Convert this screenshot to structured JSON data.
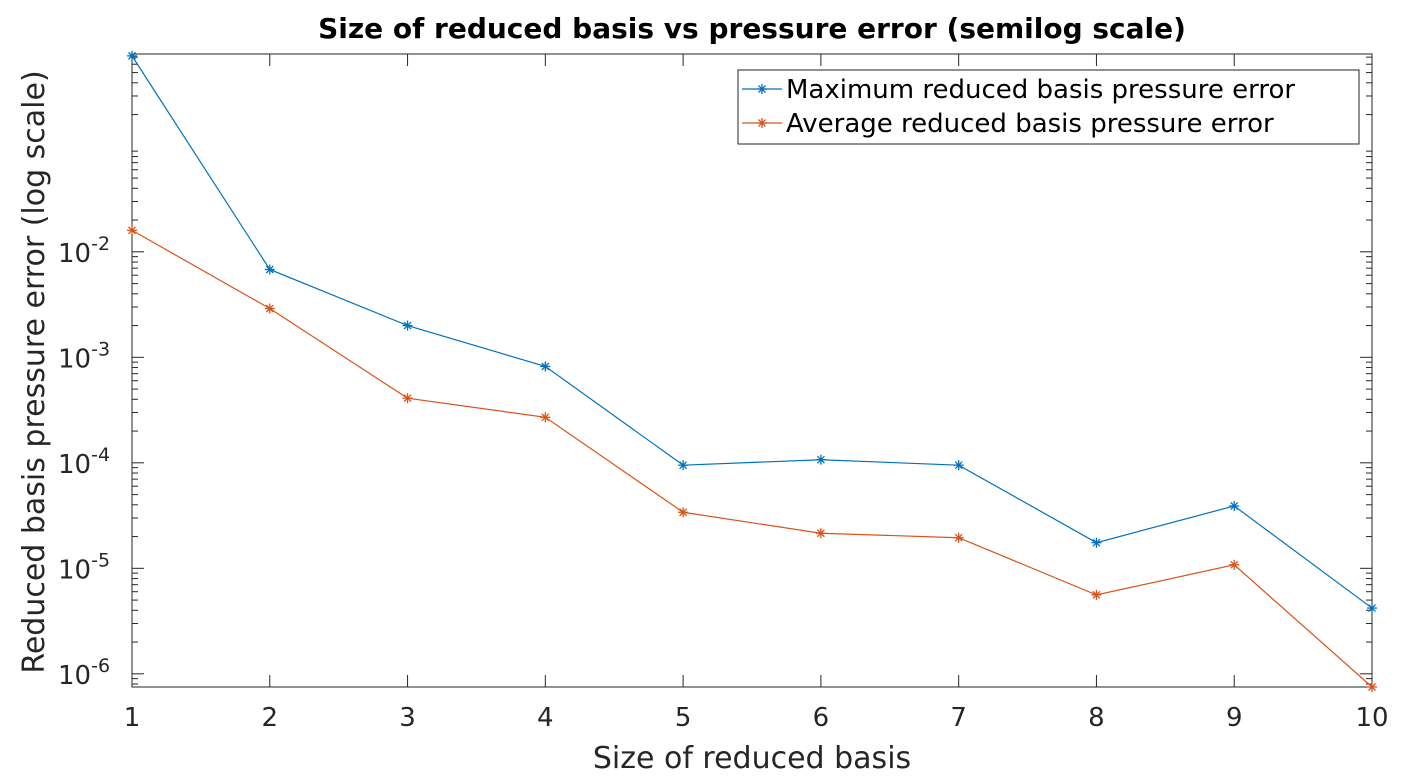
{
  "chart_data": {
    "type": "line",
    "title": "Size of reduced basis vs pressure error (semilog scale)",
    "xlabel": "Size of reduced basis",
    "ylabel": "Reduced basis pressure error (log scale)",
    "yscale": "log",
    "xlim": [
      1,
      10
    ],
    "ylim": [
      7.5e-07,
      0.75
    ],
    "x": [
      1,
      2,
      3,
      4,
      5,
      6,
      7,
      8,
      9,
      10
    ],
    "x_ticks": [
      "1",
      "2",
      "3",
      "4",
      "5",
      "6",
      "7",
      "8",
      "9",
      "10"
    ],
    "y_ticks": [
      {
        "value": 1e-06,
        "base": "10",
        "exp": "-6"
      },
      {
        "value": 1e-05,
        "base": "10",
        "exp": "-5"
      },
      {
        "value": 0.0001,
        "base": "10",
        "exp": "-4"
      },
      {
        "value": 0.001,
        "base": "10",
        "exp": "-3"
      },
      {
        "value": 0.01,
        "base": "10",
        "exp": "-2"
      }
    ],
    "grid": false,
    "legend_position": "top-right",
    "series": [
      {
        "name": "Maximum reduced basis pressure error",
        "color": "#0072BD",
        "marker": "asterisk",
        "values": [
          0.72,
          0.0068,
          0.002,
          0.00082,
          9.5e-05,
          0.000107,
          9.5e-05,
          1.75e-05,
          3.9e-05,
          4.2e-06
        ]
      },
      {
        "name": "Average reduced basis pressure error",
        "color": "#D95319",
        "marker": "asterisk",
        "values": [
          0.016,
          0.0029,
          0.00041,
          0.00027,
          3.4e-05,
          2.15e-05,
          1.95e-05,
          5.6e-06,
          1.08e-05,
          7.5e-07
        ]
      }
    ]
  }
}
